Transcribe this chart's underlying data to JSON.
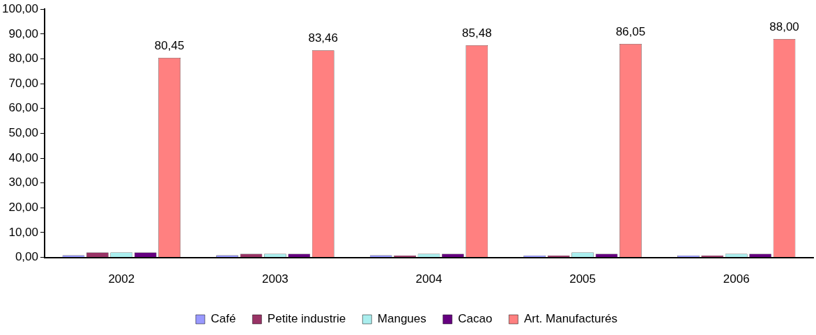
{
  "chart_data": {
    "type": "bar",
    "categories": [
      "2002",
      "2003",
      "2004",
      "2005",
      "2006"
    ],
    "series": [
      {
        "name": "Café",
        "color": "#9999ff",
        "values": [
          0.9,
          0.9,
          0.9,
          0.8,
          0.8
        ]
      },
      {
        "name": "Petite industrie",
        "color": "#993366",
        "values": [
          2.0,
          1.4,
          0.8,
          0.8,
          0.8
        ]
      },
      {
        "name": "Mangues",
        "color": "#aaeeee",
        "values": [
          2.0,
          1.4,
          1.4,
          2.0,
          1.4
        ]
      },
      {
        "name": "Cacao",
        "color": "#660080",
        "values": [
          2.0,
          1.4,
          1.4,
          1.4,
          1.4
        ]
      },
      {
        "name": "Art. Manufacturés",
        "color": "#ff8080",
        "values": [
          80.45,
          83.46,
          85.48,
          86.05,
          88.0
        ],
        "value_labels": [
          "80,45",
          "83,46",
          "85,48",
          "86,05",
          "88,00"
        ]
      }
    ],
    "ylim": [
      0,
      100
    ],
    "yticks": [
      {
        "value": 0,
        "label": "0,00"
      },
      {
        "value": 10,
        "label": "10,00"
      },
      {
        "value": 20,
        "label": "20,00"
      },
      {
        "value": 30,
        "label": "30,00"
      },
      {
        "value": 40,
        "label": "40,00"
      },
      {
        "value": 50,
        "label": "50,00"
      },
      {
        "value": 60,
        "label": "60,00"
      },
      {
        "value": 70,
        "label": "70,00"
      },
      {
        "value": 80,
        "label": "80,00"
      },
      {
        "value": 90,
        "label": "90,00"
      },
      {
        "value": 100,
        "label": "100,00"
      }
    ],
    "grid": false,
    "legend": "bottom"
  }
}
